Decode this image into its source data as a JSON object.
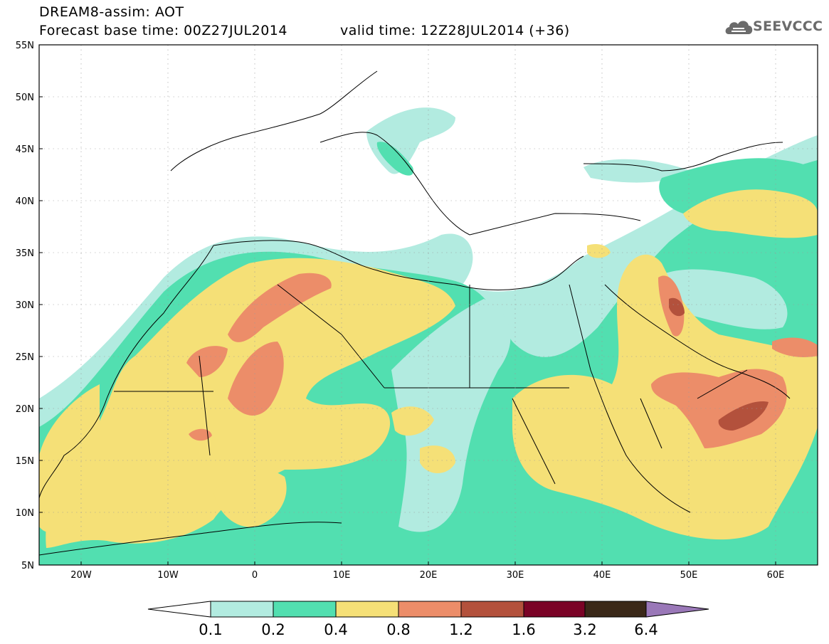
{
  "header": {
    "line1": "DREAM8-assim: AOT",
    "line2": "Forecast base time: 00Z27JUL2014",
    "valid": "valid time: 12Z28JUL2014 (+36)",
    "logo_text": "SEEVCCC"
  },
  "axes": {
    "lat_labels": [
      "55N",
      "50N",
      "45N",
      "40N",
      "35N",
      "30N",
      "25N",
      "20N",
      "15N",
      "10N",
      "5N"
    ],
    "lon_labels": [
      "20W",
      "10W",
      "0",
      "10E",
      "20E",
      "30E",
      "40E",
      "50E",
      "60E"
    ]
  },
  "legend": {
    "values": [
      "0.1",
      "0.2",
      "0.4",
      "0.8",
      "1.2",
      "1.6",
      "3.2",
      "6.4"
    ],
    "colors": [
      "#b2ebe0",
      "#52dfb0",
      "#f5e077",
      "#ec8d69",
      "#b3513c",
      "#7a0326",
      "#3a2818",
      "#9a78b8"
    ]
  },
  "colors": {
    "lightcyan": "#b2ebe0",
    "green": "#52dfb0",
    "yellow": "#f5e077",
    "orange": "#ec8d69",
    "rust": "#b3513c"
  }
}
